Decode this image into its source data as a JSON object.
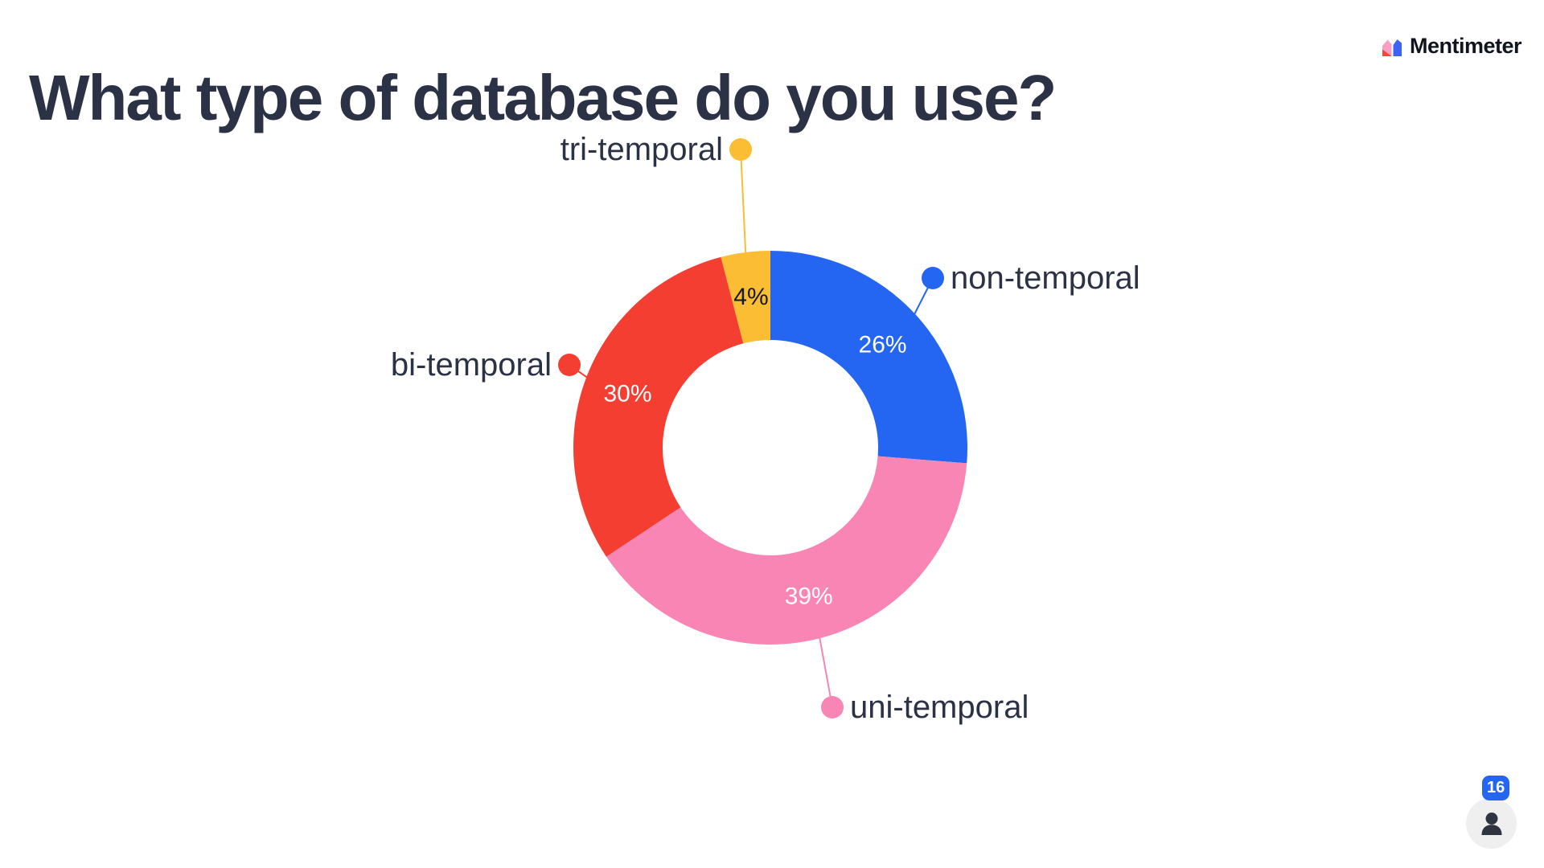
{
  "header": {
    "title": "What type of database do you use?",
    "logo_text": "Mentimeter",
    "logo_colors": {
      "pink": "#F7A0C3",
      "red": "#FE4139",
      "blue": "#3D63F4"
    }
  },
  "chart_data": {
    "type": "pie",
    "subtype": "donut",
    "title": "What type of database do you use?",
    "categories": [
      "non-temporal",
      "uni-temporal",
      "bi-temporal",
      "tri-temporal"
    ],
    "values": [
      26,
      39,
      30,
      4
    ],
    "display_values": [
      "26%",
      "39%",
      "30%",
      "4%"
    ],
    "unit": "%",
    "colors": [
      "#2466F2",
      "#F985B5",
      "#F53E32",
      "#FBBD33"
    ],
    "value_label_colors": [
      "#FFFFFF",
      "#FFFFFF",
      "#FFFFFF",
      "#14181F"
    ],
    "rotation": "clockwise-from-top",
    "inner_radius_ratio": 0.55,
    "grid": false,
    "legend_position": "callout-labels"
  },
  "participants": {
    "count": "16"
  },
  "colors": {
    "background": "#FFFFFF",
    "title_text": "#2B3245",
    "callout_text": "#2B3245",
    "badge_bg": "#2466F2",
    "badge_text": "#FFFFFF",
    "avatar_circle_bg": "#EFEFEF",
    "avatar_icon": "#2E3540"
  }
}
